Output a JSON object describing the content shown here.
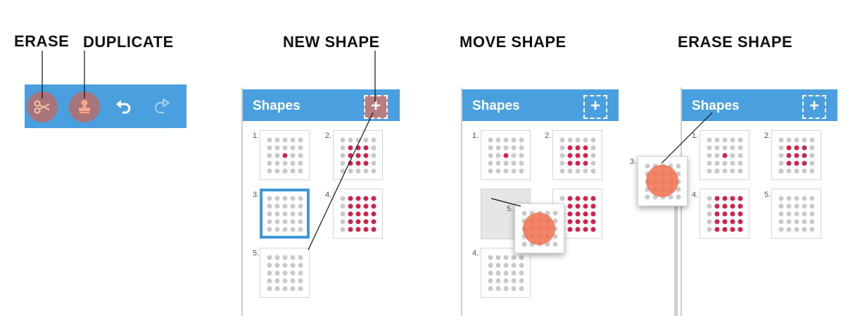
{
  "captions": {
    "erase": "ERASE",
    "duplicate": "DUPLICATE",
    "new_shape": "NEW SHAPE",
    "move_shape": "MOVE SHAPE",
    "erase_shape": "ERASE SHAPE"
  },
  "toolbar": {
    "tools": [
      {
        "icon": "scissors-icon",
        "state": "active"
      },
      {
        "icon": "stamp-icon",
        "state": "active"
      },
      {
        "icon": "undo-icon",
        "state": "enabled"
      },
      {
        "icon": "redo-icon",
        "state": "disabled"
      }
    ]
  },
  "panel": {
    "title": "Shapes",
    "add_label": "+"
  },
  "shape_numbers": {
    "n1": "1.",
    "n2": "2.",
    "n3": "3.",
    "n4": "4.",
    "n5": "5."
  },
  "colors": {
    "accent": "#4a9fdf",
    "active_dot": "#d2234a",
    "inactive_dot": "#c9c9c9",
    "touch": "#f26f4e",
    "selection": "#3f97db"
  }
}
